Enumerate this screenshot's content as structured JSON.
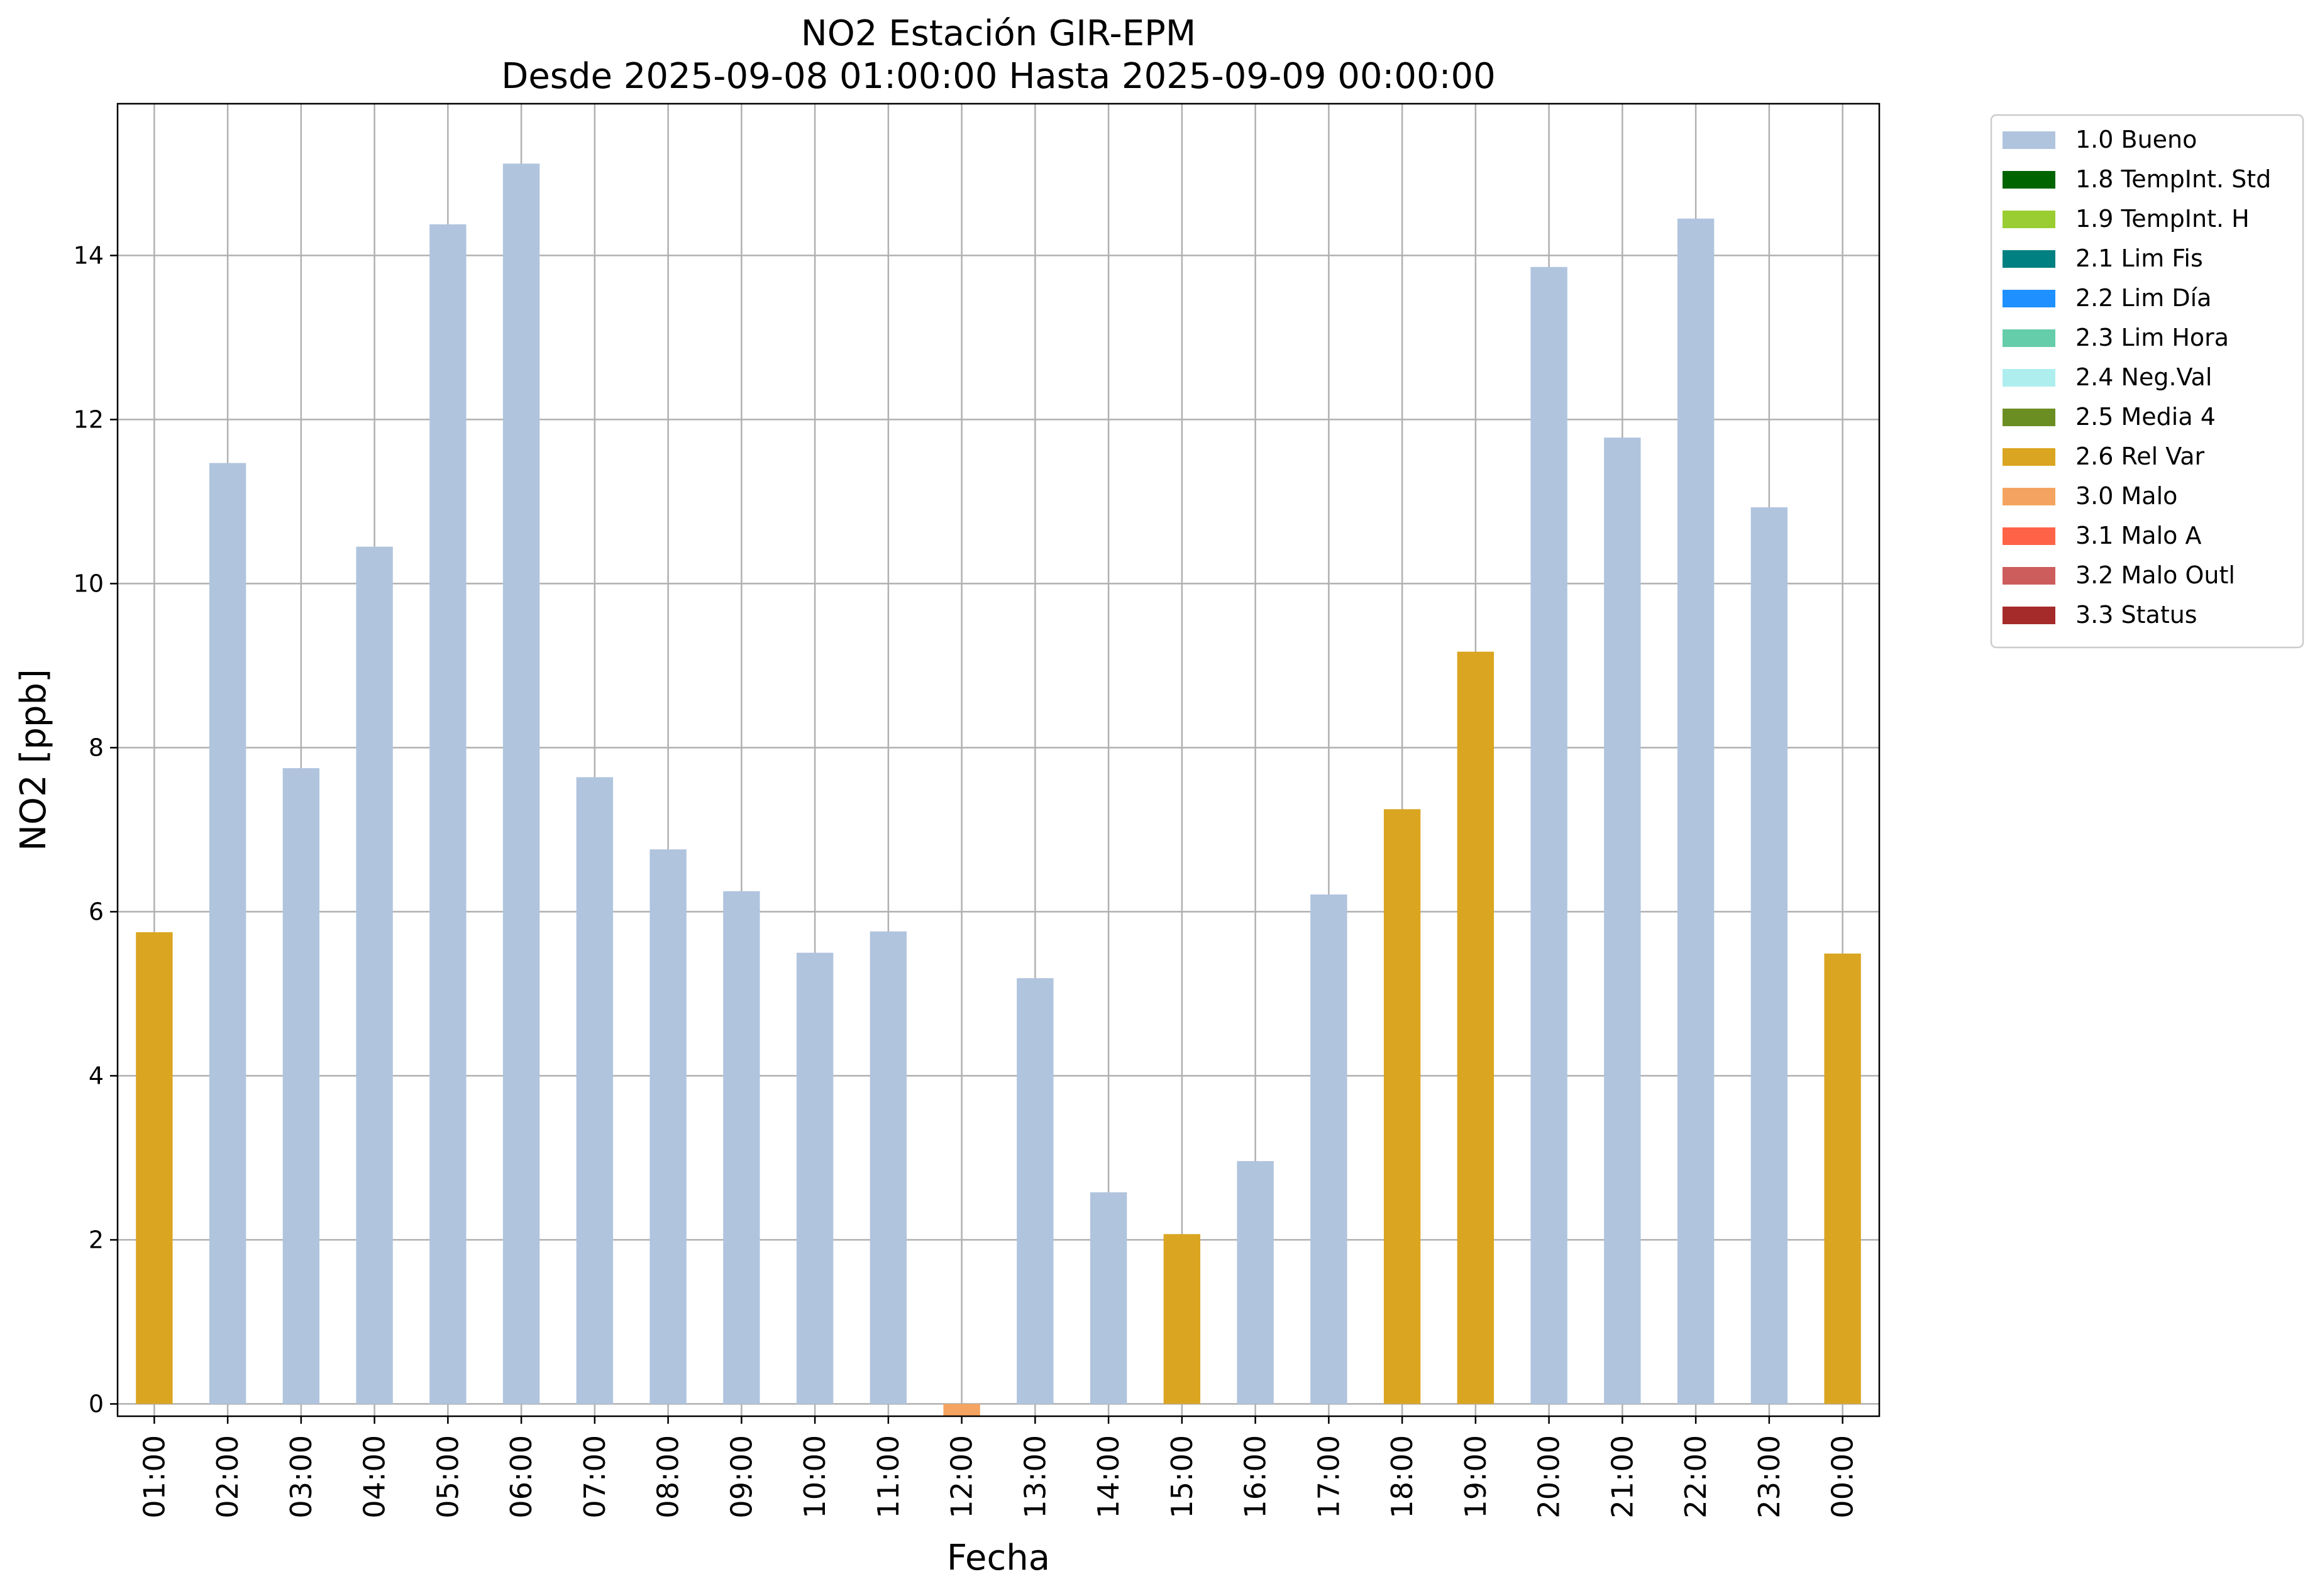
{
  "chart_data": {
    "type": "bar",
    "title": "NO2 Estación GIR-EPM",
    "subtitle": "Desde 2025-09-08 01:00:00 Hasta 2025-09-09 00:00:00",
    "xlabel": "Fecha",
    "ylabel": "NO2 [ppb]",
    "ylim": [
      -0.15,
      15.85
    ],
    "yticks": [
      0,
      2,
      4,
      6,
      8,
      10,
      12,
      14
    ],
    "grid": true,
    "legend_position": "outside-top-right",
    "categories": [
      "01:00",
      "02:00",
      "03:00",
      "04:00",
      "05:00",
      "06:00",
      "07:00",
      "08:00",
      "09:00",
      "10:00",
      "11:00",
      "12:00",
      "13:00",
      "14:00",
      "15:00",
      "16:00",
      "17:00",
      "18:00",
      "19:00",
      "20:00",
      "21:00",
      "22:00",
      "23:00",
      "00:00"
    ],
    "values": [
      5.75,
      11.47,
      7.75,
      10.45,
      14.38,
      15.12,
      7.64,
      6.76,
      6.25,
      5.5,
      5.76,
      -0.15,
      5.19,
      2.58,
      2.07,
      2.96,
      6.21,
      7.25,
      9.17,
      13.86,
      11.78,
      14.45,
      10.93,
      5.49
    ],
    "flags": [
      "2.6 Rel Var",
      "1.0 Bueno",
      "1.0 Bueno",
      "1.0 Bueno",
      "1.0 Bueno",
      "1.0 Bueno",
      "1.0 Bueno",
      "1.0 Bueno",
      "1.0 Bueno",
      "1.0 Bueno",
      "1.0 Bueno",
      "3.0 Malo",
      "1.0 Bueno",
      "1.0 Bueno",
      "2.6 Rel Var",
      "1.0 Bueno",
      "1.0 Bueno",
      "2.6 Rel Var",
      "2.6 Rel Var",
      "1.0 Bueno",
      "1.0 Bueno",
      "1.0 Bueno",
      "1.0 Bueno",
      "2.6 Rel Var"
    ],
    "legend": [
      {
        "label": "1.0 Bueno",
        "color": "#b0c4de"
      },
      {
        "label": "1.8 TempInt. Std",
        "color": "#006400"
      },
      {
        "label": "1.9 TempInt. H",
        "color": "#9acd32"
      },
      {
        "label": "2.1 Lim Fis",
        "color": "#008080"
      },
      {
        "label": "2.2 Lim Día",
        "color": "#1e90ff"
      },
      {
        "label": "2.3 Lim Hora",
        "color": "#66cdaa"
      },
      {
        "label": "2.4 Neg.Val",
        "color": "#afeeee"
      },
      {
        "label": "2.5 Media 4",
        "color": "#6b8e23"
      },
      {
        "label": "2.6 Rel Var",
        "color": "#daa520"
      },
      {
        "label": "3.0 Malo",
        "color": "#f4a460"
      },
      {
        "label": "3.1 Malo A",
        "color": "#ff6347"
      },
      {
        "label": "3.2 Malo Outl",
        "color": "#cd5c5c"
      },
      {
        "label": "3.3 Status",
        "color": "#a52a2a"
      }
    ]
  }
}
